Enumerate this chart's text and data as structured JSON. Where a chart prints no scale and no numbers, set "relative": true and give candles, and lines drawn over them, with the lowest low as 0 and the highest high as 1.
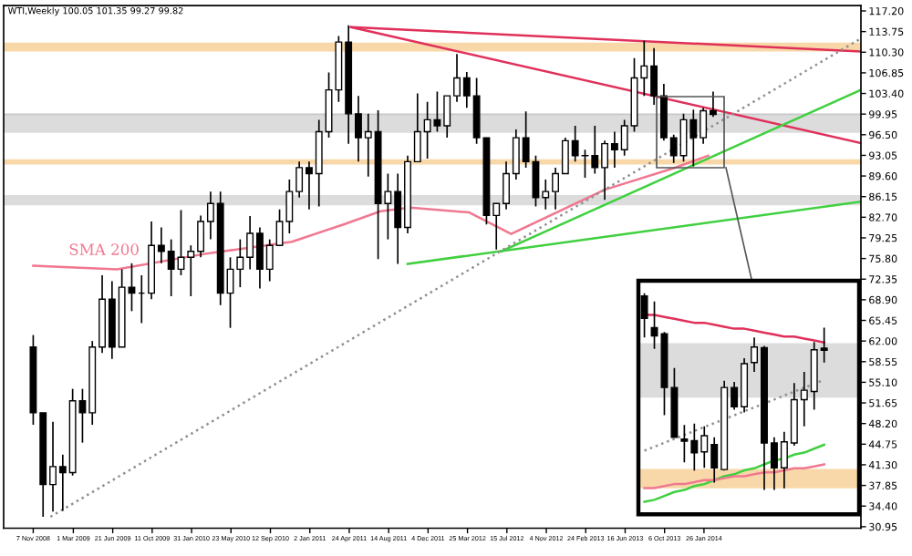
{
  "chart_data": [
    {
      "type": "candlestick",
      "title": "WTI,Weekly 100.05 101.35 99.27 99.82",
      "x": [
        "2008-11-07",
        "2008-12-05",
        "2009-01-02",
        "2009-01-30",
        "2009-02-27",
        "2009-03-27",
        "2009-04-24",
        "2009-05-22",
        "2009-06-19",
        "2009-07-17",
        "2009-08-14",
        "2009-09-11",
        "2009-10-09",
        "2009-11-06",
        "2009-12-04",
        "2010-01-01",
        "2010-01-29",
        "2010-02-26",
        "2010-03-26",
        "2010-04-23",
        "2010-05-21",
        "2010-06-18",
        "2010-07-16",
        "2010-08-13",
        "2010-09-10",
        "2010-10-08",
        "2010-11-05",
        "2010-12-03",
        "2010-12-31",
        "2011-01-28",
        "2011-02-25",
        "2011-03-25",
        "2011-04-22",
        "2011-05-20",
        "2011-06-17",
        "2011-07-15",
        "2011-08-12",
        "2011-09-09",
        "2011-10-07",
        "2011-11-04",
        "2011-12-02",
        "2011-12-30",
        "2012-01-27",
        "2012-02-24",
        "2012-03-23",
        "2012-04-20",
        "2012-05-18",
        "2012-06-15",
        "2012-07-13",
        "2012-08-10",
        "2012-09-07",
        "2012-10-05",
        "2012-11-02",
        "2012-11-30",
        "2012-12-28",
        "2013-01-25",
        "2013-02-22",
        "2013-03-22",
        "2013-04-19",
        "2013-05-17",
        "2013-06-14",
        "2013-07-12",
        "2013-08-09",
        "2013-09-06",
        "2013-10-04",
        "2013-11-01",
        "2013-11-29",
        "2013-12-27",
        "2014-01-24",
        "2014-02-21"
      ],
      "ohlc": [
        [
          61,
          63,
          48,
          50
        ],
        [
          50,
          50,
          32.6,
          38
        ],
        [
          38,
          48.5,
          33.5,
          41
        ],
        [
          41,
          43,
          33.6,
          40
        ],
        [
          40,
          54,
          39.5,
          52
        ],
        [
          52,
          54,
          45,
          50
        ],
        [
          50,
          62,
          48,
          61
        ],
        [
          61,
          73,
          60,
          69
        ],
        [
          69,
          72,
          59,
          61
        ],
        [
          61,
          74,
          61,
          71
        ],
        [
          71,
          75,
          67,
          70
        ],
        [
          70,
          73,
          65,
          70
        ],
        [
          70,
          82,
          69,
          78
        ],
        [
          78,
          81,
          75,
          77
        ],
        [
          77,
          79,
          69.5,
          74
        ],
        [
          74,
          83.9,
          73,
          76
        ],
        [
          76,
          78,
          69.5,
          77
        ],
        [
          77,
          83,
          76,
          82
        ],
        [
          82,
          87,
          79,
          85
        ],
        [
          85,
          87,
          68,
          70
        ],
        [
          70,
          76,
          64.2,
          74
        ],
        [
          74,
          79,
          71,
          76
        ],
        [
          76,
          82.9,
          74,
          80
        ],
        [
          80,
          81,
          70.8,
          74
        ],
        [
          74,
          79,
          72,
          78
        ],
        [
          78,
          84,
          78,
          82
        ],
        [
          82,
          89,
          80,
          87
        ],
        [
          87,
          92,
          86,
          91
        ],
        [
          91,
          92,
          84,
          90
        ],
        [
          90,
          99,
          84.5,
          97
        ],
        [
          97,
          106.9,
          96,
          104
        ],
        [
          104,
          113,
          102,
          112
        ],
        [
          112,
          114.8,
          95,
          100
        ],
        [
          100,
          103,
          92,
          96
        ],
        [
          96,
          100,
          89.5,
          97
        ],
        [
          97,
          100.6,
          75.7,
          85
        ],
        [
          85,
          90,
          79,
          87
        ],
        [
          87,
          90,
          74.9,
          81
        ],
        [
          81,
          93,
          80,
          92
        ],
        [
          92,
          103.4,
          92,
          97
        ],
        [
          97,
          102,
          92.5,
          99
        ],
        [
          99,
          103.7,
          97,
          98
        ],
        [
          98,
          103,
          96,
          103
        ],
        [
          103,
          110,
          102,
          106
        ],
        [
          106,
          107,
          101,
          103
        ],
        [
          103,
          106,
          95,
          96
        ],
        [
          96,
          96,
          81.5,
          83
        ],
        [
          83,
          85,
          77.3,
          85
        ],
        [
          85,
          92,
          84,
          90
        ],
        [
          90,
          97.4,
          89,
          96
        ],
        [
          96,
          100.4,
          91,
          92
        ],
        [
          92,
          93,
          84.5,
          86
        ],
        [
          86,
          89,
          84,
          87
        ],
        [
          87,
          91,
          84,
          90
        ],
        [
          90,
          96,
          90,
          95.5
        ],
        [
          95.5,
          98,
          92,
          93
        ],
        [
          93,
          94,
          89.3,
          93
        ],
        [
          93,
          98,
          90,
          91
        ],
        [
          91,
          95.5,
          85.6,
          95
        ],
        [
          95,
          97,
          91,
          94
        ],
        [
          94,
          99,
          93,
          98
        ],
        [
          98,
          109.3,
          97,
          106
        ],
        [
          106,
          112.2,
          103,
          108
        ],
        [
          108,
          111,
          101.5,
          103
        ],
        [
          103,
          105,
          95.5,
          96
        ],
        [
          96,
          96.5,
          91.8,
          93
        ],
        [
          93,
          100,
          92,
          99
        ],
        [
          99,
          100.7,
          91.2,
          96
        ],
        [
          96,
          101,
          95,
          100.5
        ],
        [
          100.5,
          103.7,
          99.5,
          99.9
        ]
      ],
      "series": [
        {
          "type": "line",
          "name": "SMA 200",
          "color": "#f07890",
          "x": [
            "2008-11-07",
            "2009-07-03",
            "2010-03-12",
            "2010-11-12",
            "2011-04-08",
            "2011-07-22",
            "2011-10-14",
            "2012-03-30",
            "2012-07-27",
            "2013-04-19",
            "2013-11-01",
            "2014-02-07"
          ],
          "values": [
            74.6,
            74.0,
            76.6,
            78.6,
            81.5,
            83.7,
            84.3,
            83.5,
            79.9,
            87.3,
            90.9,
            93.0
          ]
        },
        {
          "type": "line",
          "color": "#e0305a",
          "x": [
            "2011-04-29",
            "2015-04-17"
          ],
          "values": [
            114.5,
            110.4
          ]
        },
        {
          "type": "line",
          "color": "#e0305a",
          "x": [
            "2011-04-29",
            "2015-04-17"
          ],
          "values": [
            114.5,
            95.1
          ]
        },
        {
          "type": "line",
          "color": "#40d040",
          "x": [
            "2011-10-07",
            "2015-04-17"
          ],
          "values": [
            74.9,
            85.3
          ]
        },
        {
          "type": "line",
          "color": "#40d040",
          "x": [
            "2012-06-29",
            "2015-04-17"
          ],
          "values": [
            77.0,
            104.0
          ]
        },
        {
          "type": "line",
          "color": "#909090",
          "line_style": "dotted",
          "x": [
            "2008-12-26",
            "2015-04-17"
          ],
          "values": [
            32.6,
            112.6
          ]
        }
      ],
      "bands": [
        {
          "axis": "y",
          "from": 96.8,
          "to": 100.05,
          "color": "#dcdcdc"
        },
        {
          "axis": "y",
          "from": 84.7,
          "to": 86.4,
          "color": "#dcdcdc"
        },
        {
          "axis": "y",
          "from": 110.4,
          "to": 111.9,
          "color": "#f8d8a8"
        },
        {
          "axis": "y",
          "from": 91.5,
          "to": 92.4,
          "color": "#f8d8a8"
        }
      ],
      "ref_lines": [
        {
          "axis": "y",
          "value": 99.9,
          "color": "#c8c8c8"
        }
      ],
      "xlim": [
        "2008-08-15",
        "2015-04-17"
      ],
      "xticks": [
        {
          "value": "2008-11-07",
          "label": "7 Nov 2008"
        },
        {
          "value": "2009-03-01",
          "label": "1 Mar 2009"
        },
        {
          "value": "2009-06-21",
          "label": "21 Jun 2009"
        },
        {
          "value": "2009-10-11",
          "label": "11 Oct 2009"
        },
        {
          "value": "2010-01-31",
          "label": "31 Jan 2010"
        },
        {
          "value": "2010-05-23",
          "label": "23 May 2010"
        },
        {
          "value": "2010-09-12",
          "label": "12 Sep 2010"
        },
        {
          "value": "2011-01-02",
          "label": "2 Jan 2011"
        },
        {
          "value": "2011-04-24",
          "label": "24 Apr 2011"
        },
        {
          "value": "2011-08-14",
          "label": "14 Aug 2011"
        },
        {
          "value": "2011-12-04",
          "label": "4 Dec 2011"
        },
        {
          "value": "2012-03-25",
          "label": "25 Mar 2012"
        },
        {
          "value": "2012-07-15",
          "label": "15 Jul 2012"
        },
        {
          "value": "2012-11-04",
          "label": "4 Nov 2012"
        },
        {
          "value": "2013-02-24",
          "label": "24 Feb 2013"
        },
        {
          "value": "2013-06-16",
          "label": "16 Jun 2013"
        },
        {
          "value": "2013-10-06",
          "label": "6 Oct 2013"
        },
        {
          "value": "2014-01-26",
          "label": "26 Jan 2014"
        }
      ],
      "ylim": [
        30.7,
        118.1
      ],
      "yticks": [
        {
          "value": 117.2,
          "label": "117.20"
        },
        {
          "value": 113.75,
          "label": "113.75"
        },
        {
          "value": 110.3,
          "label": "110.30"
        },
        {
          "value": 106.85,
          "label": "106.85"
        },
        {
          "value": 103.4,
          "label": "103.40"
        },
        {
          "value": 99.95,
          "label": "99.95"
        },
        {
          "value": 96.5,
          "label": "96.50"
        },
        {
          "value": 93.05,
          "label": "93.05"
        },
        {
          "value": 89.6,
          "label": "89.60"
        },
        {
          "value": 86.15,
          "label": "86.15"
        },
        {
          "value": 82.7,
          "label": "82.70"
        },
        {
          "value": 79.25,
          "label": "79.25"
        },
        {
          "value": 75.8,
          "label": "75.80"
        },
        {
          "value": 72.35,
          "label": "72.35"
        },
        {
          "value": 68.9,
          "label": "68.90"
        },
        {
          "value": 65.45,
          "label": "65.45"
        },
        {
          "value": 62.0,
          "label": "62.00"
        },
        {
          "value": 58.55,
          "label": "58.55"
        },
        {
          "value": 55.1,
          "label": "55.10"
        },
        {
          "value": 51.65,
          "label": "51.65"
        },
        {
          "value": 48.2,
          "label": "48.20"
        },
        {
          "value": 44.75,
          "label": "44.75"
        },
        {
          "value": 41.3,
          "label": "41.30"
        },
        {
          "value": 37.85,
          "label": "37.85"
        },
        {
          "value": 34.4,
          "label": "34.40"
        },
        {
          "value": 30.95,
          "label": "30.95"
        }
      ]
    },
    {
      "type": "candlestick",
      "relative": true,
      "categories": [
        null,
        null,
        null,
        null,
        null,
        null,
        null,
        null,
        null,
        null,
        null,
        null,
        null,
        null,
        null,
        null,
        null,
        null,
        null
      ],
      "ohlc": [
        [
          0.986,
          1.0,
          0.775,
          0.873
        ],
        [
          0.825,
          0.958,
          0.718,
          0.783
        ],
        [
          0.794,
          0.803,
          0.38,
          0.521
        ],
        [
          0.521,
          0.62,
          0.268,
          0.268
        ],
        [
          0.259,
          0.33,
          0.141,
          0.248
        ],
        [
          0.251,
          0.338,
          0.099,
          0.189
        ],
        [
          0.194,
          0.324,
          0.113,
          0.276
        ],
        [
          0.231,
          0.268,
          0.037,
          0.113
        ],
        [
          0.104,
          0.555,
          0.099,
          0.521
        ],
        [
          0.521,
          0.549,
          0.408,
          0.423
        ],
        [
          0.423,
          0.67,
          0.394,
          0.642
        ],
        [
          0.648,
          0.775,
          0.6,
          0.727
        ],
        [
          0.724,
          0.732,
          0.0,
          0.239
        ],
        [
          0.239,
          0.268,
          0.0,
          0.113
        ],
        [
          0.113,
          0.296,
          0.008,
          0.245
        ],
        [
          0.239,
          0.544,
          0.225,
          0.459
        ],
        [
          0.459,
          0.6,
          0.324,
          0.507
        ],
        [
          0.501,
          0.752,
          0.408,
          0.713
        ],
        [
          0.721,
          0.825,
          0.648,
          0.71
        ]
      ],
      "series": [
        {
          "type": "line",
          "color": "#e0305a",
          "values": [
            0.89,
            0.89,
            0.88,
            0.87,
            0.86,
            0.85,
            0.85,
            0.84,
            0.83,
            0.82,
            0.82,
            0.81,
            0.8,
            0.79,
            0.78,
            0.78,
            0.77,
            0.76,
            0.75
          ]
        },
        {
          "type": "line",
          "color": "#40d040",
          "values": [
            -0.06,
            -0.05,
            -0.03,
            -0.01,
            0.0,
            0.02,
            0.03,
            0.05,
            0.07,
            0.08,
            0.1,
            0.11,
            0.13,
            0.15,
            0.16,
            0.18,
            0.19,
            0.21,
            0.23
          ]
        },
        {
          "type": "line",
          "color": "#909090",
          "line_style": "dotted",
          "values": [
            0.2,
            0.22,
            0.24,
            0.26,
            0.28,
            0.3,
            0.32,
            0.34,
            0.36,
            0.38,
            0.4,
            0.42,
            0.44,
            0.46,
            0.48,
            0.5,
            0.52,
            0.54,
            0.56
          ]
        },
        {
          "type": "line",
          "color": "#f07890",
          "values": [
            0.01,
            0.01,
            0.02,
            0.03,
            0.03,
            0.04,
            0.05,
            0.05,
            0.06,
            0.07,
            0.07,
            0.08,
            0.09,
            0.09,
            0.1,
            0.11,
            0.11,
            0.12,
            0.13
          ]
        }
      ],
      "bands": [
        {
          "axis": "y",
          "from": 0.47,
          "to": 0.746,
          "color": "#dcdcdc"
        },
        {
          "axis": "y",
          "from": 0.008,
          "to": 0.107,
          "color": "#f8d8a8"
        }
      ]
    }
  ]
}
